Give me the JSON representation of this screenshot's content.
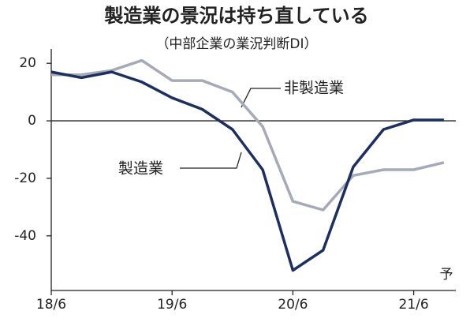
{
  "chart_data": {
    "type": "line",
    "title": "製造業の景況は持ち直している",
    "subtitle": "（中部企業の業況判断DI）",
    "categories": [
      "18/6",
      null,
      null,
      null,
      "19/6",
      null,
      null,
      null,
      "20/6",
      null,
      null,
      null,
      "21/6",
      null
    ],
    "series": [
      {
        "name": "製造業",
        "color": "#1c2f5e",
        "values": [
          17,
          15,
          17,
          13.5,
          8,
          4,
          -3,
          -17,
          -52,
          -45,
          -16,
          -3,
          0.3,
          0.3
        ]
      },
      {
        "name": "非製造業",
        "color": "#a6a9b8",
        "values": [
          16,
          16,
          17.5,
          21,
          14,
          14,
          10,
          -2,
          -28,
          -31,
          -19,
          -17,
          -17,
          -14.5
        ]
      }
    ],
    "annotation": "予",
    "ylim": [
      -59,
      25
    ],
    "yticks": [
      20,
      0,
      -20,
      -40
    ]
  }
}
